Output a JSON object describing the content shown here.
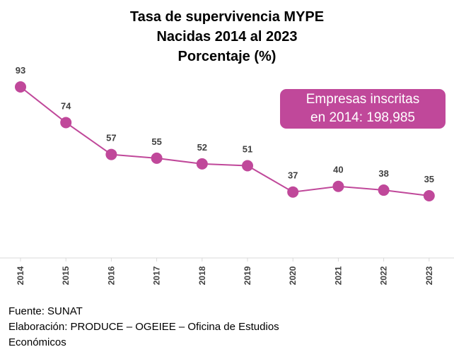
{
  "chart_data": {
    "type": "line",
    "title": [
      "Tasa de supervivencia MYPE",
      "Nacidas 2014 al 2023",
      "Porcentaje (%)"
    ],
    "categories": [
      "2014",
      "2015",
      "2016",
      "2017",
      "2018",
      "2019",
      "2020",
      "2021",
      "2022",
      "2023"
    ],
    "series": [
      {
        "values": [
          93,
          74,
          57,
          55,
          52,
          51,
          37,
          40,
          38,
          35
        ]
      }
    ],
    "ylim": [
      0,
      100
    ],
    "grid": false,
    "data_labels": true,
    "line_color": "#c0489a",
    "marker_color": "#c0489a",
    "annotation": {
      "line1": "Empresas inscritas",
      "line2": "en 2014: 198,985",
      "color": "#c0489a"
    }
  },
  "footer": {
    "source": "Fuente: SUNAT",
    "elaboration_line1": "Elaboración: PRODUCE – OGEIEE – Oficina de Estudios",
    "elaboration_line2": "Económicos"
  }
}
